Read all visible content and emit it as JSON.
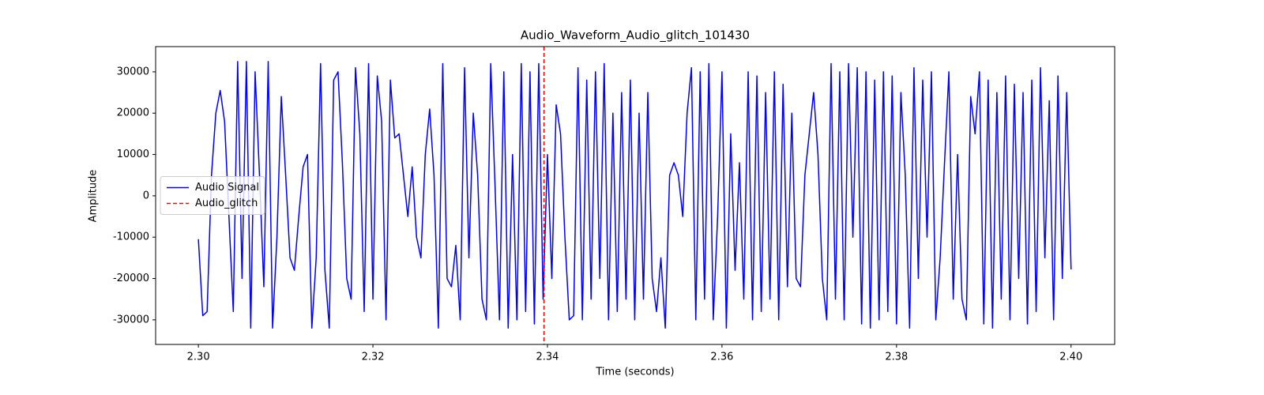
{
  "chart_data": {
    "type": "line",
    "title": "Audio_Waveform_Audio_glitch_101430",
    "x_label": "Time (seconds)",
    "y_label": "Amplitude",
    "xlim": [
      2.2951,
      2.405
    ],
    "ylim": [
      -35950,
      36100
    ],
    "xticks": [
      {
        "value": 2.3,
        "label": "2.30"
      },
      {
        "value": 2.32,
        "label": "2.32"
      },
      {
        "value": 2.34,
        "label": "2.34"
      },
      {
        "value": 2.36,
        "label": "2.36"
      },
      {
        "value": 2.38,
        "label": "2.38"
      },
      {
        "value": 2.4,
        "label": "2.40"
      }
    ],
    "yticks": [
      -30000,
      -20000,
      -10000,
      0,
      10000,
      20000,
      30000
    ],
    "legend": "center left",
    "grid": false,
    "x": [
      2.3,
      2.3005,
      2.301,
      2.3015,
      2.302,
      2.3025,
      2.303,
      2.3035,
      2.304,
      2.3045,
      2.305,
      2.3055,
      2.306,
      2.3065,
      2.307,
      2.3075,
      2.308,
      2.3085,
      2.309,
      2.3095,
      2.31,
      2.3105,
      2.311,
      2.3115,
      2.312,
      2.3125,
      2.313,
      2.3135,
      2.314,
      2.3145,
      2.315,
      2.3155,
      2.316,
      2.3165,
      2.317,
      2.3175,
      2.318,
      2.3185,
      2.319,
      2.3195,
      2.32,
      2.3205,
      2.321,
      2.3215,
      2.322,
      2.3225,
      2.323,
      2.3235,
      2.324,
      2.3245,
      2.325,
      2.3255,
      2.326,
      2.3265,
      2.327,
      2.3275,
      2.328,
      2.3285,
      2.329,
      2.3295,
      2.33,
      2.3305,
      2.331,
      2.3315,
      2.332,
      2.3325,
      2.333,
      2.3335,
      2.334,
      2.3345,
      2.335,
      2.3355,
      2.336,
      2.3365,
      2.337,
      2.3375,
      2.338,
      2.3385,
      2.339,
      2.3395,
      2.34,
      2.3405,
      2.341,
      2.3415,
      2.342,
      2.3425,
      2.343,
      2.3435,
      2.344,
      2.3445,
      2.345,
      2.3455,
      2.346,
      2.3465,
      2.347,
      2.3475,
      2.348,
      2.3485,
      2.349,
      2.3495,
      2.35,
      2.3505,
      2.351,
      2.3515,
      2.352,
      2.3525,
      2.353,
      2.3535,
      2.354,
      2.3545,
      2.355,
      2.3555,
      2.356,
      2.3565,
      2.357,
      2.3575,
      2.358,
      2.3585,
      2.359,
      2.3595,
      2.36,
      2.3605,
      2.361,
      2.3615,
      2.362,
      2.3625,
      2.363,
      2.3635,
      2.364,
      2.3645,
      2.365,
      2.3655,
      2.366,
      2.3665,
      2.367,
      2.3675,
      2.368,
      2.3685,
      2.369,
      2.3695,
      2.37,
      2.3705,
      2.371,
      2.3715,
      2.372,
      2.3725,
      2.373,
      2.3735,
      2.374,
      2.3745,
      2.375,
      2.3755,
      2.376,
      2.3765,
      2.377,
      2.3775,
      2.378,
      2.3785,
      2.379,
      2.3795,
      2.38,
      2.3805,
      2.381,
      2.3815,
      2.382,
      2.3825,
      2.383,
      2.3835,
      2.384,
      2.3845,
      2.385,
      2.3855,
      2.386,
      2.3865,
      2.387,
      2.3875,
      2.388,
      2.3885,
      2.389,
      2.3895,
      2.39,
      2.3905,
      2.391,
      2.3915,
      2.392,
      2.3925,
      2.393,
      2.3935,
      2.394,
      2.3945,
      2.395,
      2.3955,
      2.396,
      2.3965,
      2.397,
      2.3975,
      2.398,
      2.3985,
      2.399,
      2.3995,
      2.4
    ],
    "series": [
      {
        "name": "Audio Signal",
        "color": "#0000ff",
        "values": [
          -10500,
          -29000,
          -28000,
          5000,
          20000,
          25500,
          18000,
          -5000,
          -28000,
          32500,
          -20000,
          32500,
          -32000,
          30000,
          5000,
          -22000,
          32500,
          -32000,
          -10000,
          24000,
          5000,
          -15000,
          -18000,
          -5000,
          7000,
          10000,
          -32000,
          -15000,
          32000,
          -18000,
          -32000,
          28000,
          30000,
          8000,
          -20000,
          -25000,
          31000,
          15000,
          -28000,
          32000,
          -25000,
          29000,
          18000,
          -30000,
          28000,
          14000,
          15000,
          5000,
          -5000,
          7000,
          -10000,
          -15000,
          10000,
          21000,
          5000,
          -32000,
          32000,
          -20000,
          -22000,
          -12000,
          -30000,
          31000,
          -15000,
          20000,
          5000,
          -25000,
          -30000,
          32000,
          2000,
          -30000,
          30000,
          -32000,
          10000,
          -30000,
          32000,
          -28000,
          30000,
          -31000,
          32000,
          -25000,
          10000,
          -20000,
          22000,
          15000,
          -10000,
          -30000,
          -29000,
          31000,
          -30000,
          28000,
          -25000,
          30000,
          -20000,
          32000,
          -30000,
          20000,
          -28000,
          25000,
          -25000,
          28000,
          -30000,
          20000,
          -25000,
          25000,
          -20000,
          -28000,
          -15000,
          -32000,
          5000,
          8000,
          5000,
          -5000,
          20000,
          31000,
          -30000,
          30000,
          -25000,
          32000,
          -30000,
          -5000,
          30000,
          -32000,
          15000,
          -18000,
          8000,
          -25000,
          30000,
          -30000,
          29000,
          -28000,
          25000,
          -25000,
          30000,
          -30000,
          27000,
          -22000,
          20000,
          -20000,
          -22000,
          5000,
          15000,
          25000,
          10000,
          -20000,
          -30000,
          32000,
          -25000,
          30000,
          -30000,
          32000,
          -10000,
          31000,
          -31000,
          30000,
          -32000,
          28000,
          -30000,
          30000,
          -28000,
          29000,
          -31000,
          25000,
          5000,
          -32000,
          31000,
          -20000,
          28000,
          -10000,
          30000,
          -30000,
          -15000,
          8000,
          30000,
          -25000,
          10000,
          -25000,
          -30000,
          24000,
          15000,
          30000,
          -31000,
          28000,
          -32000,
          25000,
          -25000,
          29000,
          -30000,
          27000,
          -20000,
          25000,
          -31000,
          28000,
          -28000,
          31000,
          -15000,
          23000,
          -30000,
          29000,
          -20000,
          25000,
          -17800
        ]
      }
    ],
    "vlines": [
      {
        "name": "Audio_glitch",
        "x": 2.3396,
        "color": "#ff0000"
      }
    ]
  }
}
